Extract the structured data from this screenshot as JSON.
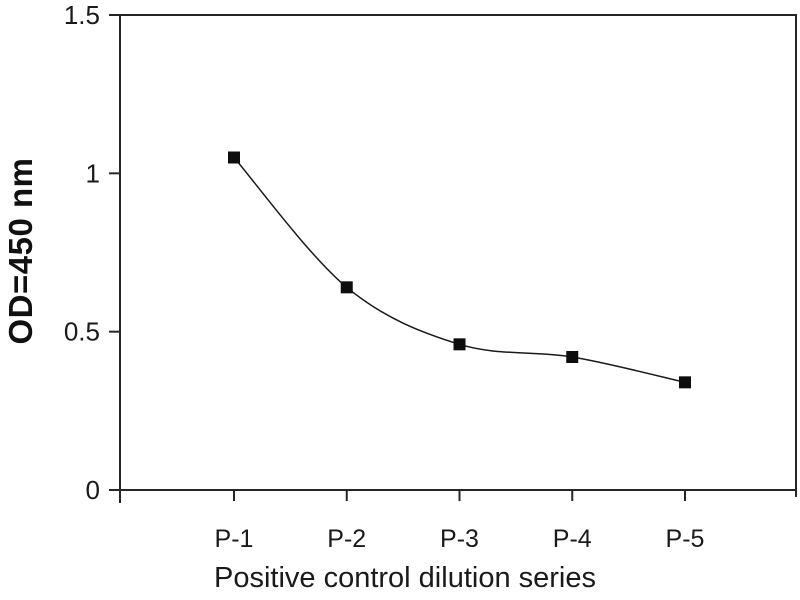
{
  "figure": {
    "background": "#ffffff",
    "text_color": "#1a1a1a",
    "axis_color": "#262626",
    "marker_color": "#0d0d0d",
    "line_color": "#1a1a1a"
  },
  "chart_data": {
    "type": "line",
    "title": "",
    "xlabel": "Positive control dilution series",
    "ylabel": "OD=450 nm",
    "categories": [
      "P-1",
      "P-2",
      "P-3",
      "P-4",
      "P-5"
    ],
    "series": [
      {
        "marker": "filled-square",
        "values": [
          1.05,
          0.64,
          0.46,
          0.42,
          0.34
        ]
      }
    ],
    "ylim": [
      0,
      1.5
    ],
    "yticks": [
      0,
      0.5,
      1,
      1.5
    ],
    "ytick_labels": [
      "0",
      "0.5",
      "1",
      "1.5"
    ],
    "grid": false,
    "legend_position": "none",
    "plot_frame": "box",
    "line_style": "smooth"
  }
}
